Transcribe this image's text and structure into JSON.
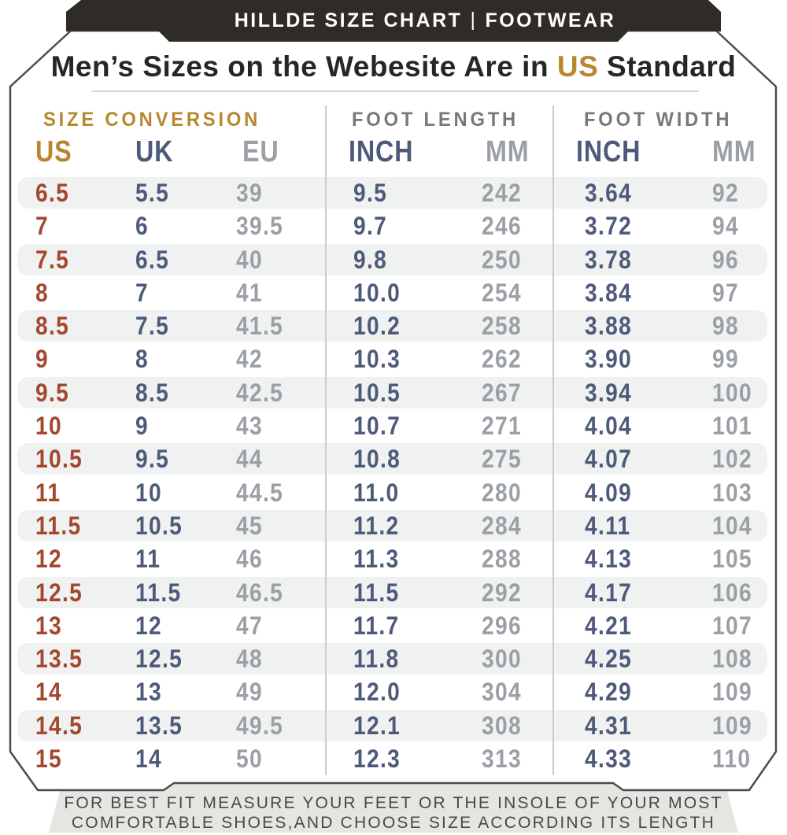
{
  "header_tab": {
    "brand": "HILLDE SIZE CHART",
    "separator": "|",
    "category": "FOOTWEAR"
  },
  "title": {
    "prefix": "Men’s Sizes on the Webesite Are in ",
    "highlight": "US",
    "suffix": " Standard"
  },
  "table": {
    "sections": [
      {
        "label": "SIZE CONVERSION"
      },
      {
        "label": "FOOT LENGTH"
      },
      {
        "label": "FOOT WIDTH"
      }
    ],
    "column_headers": [
      "US",
      "UK",
      "EU",
      "INCH",
      "MM",
      "INCH",
      "MM"
    ],
    "rows": [
      [
        "6.5",
        "5.5",
        "39",
        "9.5",
        "242",
        "3.64",
        "92"
      ],
      [
        "7",
        "6",
        "39.5",
        "9.7",
        "246",
        "3.72",
        "94"
      ],
      [
        "7.5",
        "6.5",
        "40",
        "9.8",
        "250",
        "3.78",
        "96"
      ],
      [
        "8",
        "7",
        "41",
        "10.0",
        "254",
        "3.84",
        "97"
      ],
      [
        "8.5",
        "7.5",
        "41.5",
        "10.2",
        "258",
        "3.88",
        "98"
      ],
      [
        "9",
        "8",
        "42",
        "10.3",
        "262",
        "3.90",
        "99"
      ],
      [
        "9.5",
        "8.5",
        "42.5",
        "10.5",
        "267",
        "3.94",
        "100"
      ],
      [
        "10",
        "9",
        "43",
        "10.7",
        "271",
        "4.04",
        "101"
      ],
      [
        "10.5",
        "9.5",
        "44",
        "10.8",
        "275",
        "4.07",
        "102"
      ],
      [
        "11",
        "10",
        "44.5",
        "11.0",
        "280",
        "4.09",
        "103"
      ],
      [
        "11.5",
        "10.5",
        "45",
        "11.2",
        "284",
        "4.11",
        "104"
      ],
      [
        "12",
        "11",
        "46",
        "11.3",
        "288",
        "4.13",
        "105"
      ],
      [
        "12.5",
        "11.5",
        "46.5",
        "11.5",
        "292",
        "4.17",
        "106"
      ],
      [
        "13",
        "12",
        "47",
        "11.7",
        "296",
        "4.21",
        "107"
      ],
      [
        "13.5",
        "12.5",
        "48",
        "11.8",
        "300",
        "4.25",
        "108"
      ],
      [
        "14",
        "13",
        "49",
        "12.0",
        "304",
        "4.29",
        "109"
      ],
      [
        "14.5",
        "13.5",
        "49.5",
        "12.1",
        "308",
        "4.31",
        "109"
      ],
      [
        "15",
        "14",
        "50",
        "12.3",
        "313",
        "4.33",
        "110"
      ]
    ]
  },
  "footer": {
    "line1": "FOR BEST FIT MEASURE YOUR FEET OR THE INSOLE OF YOUR MOST",
    "line2": "COMFORTABLE SHOES,AND CHOOSE SIZE ACCORDING ITS LENGTH"
  },
  "colors": {
    "accent_gold": "#b8872f",
    "us_red": "#a3472e",
    "slate_blue": "#4d5a7a",
    "light_gray_text": "#9ba0a7",
    "section_gray": "#75787c",
    "tab_black": "#2f2b27",
    "banner_gray": "#e7e5e1",
    "row_stripe": "#f0f2f1"
  }
}
